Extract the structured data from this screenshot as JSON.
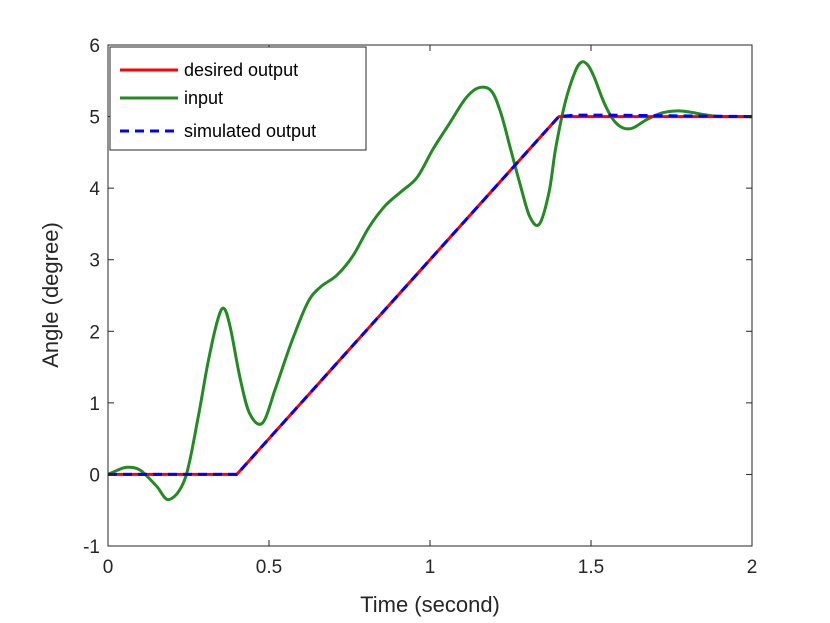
{
  "chart_data": {
    "type": "line",
    "title": "",
    "xlabel": "Time (second)",
    "ylabel": "Angle (degree)",
    "xlim": [
      0,
      2
    ],
    "ylim": [
      -1,
      6
    ],
    "xticks": [
      0,
      0.5,
      1,
      1.5,
      2
    ],
    "xtick_labels": [
      "0",
      "0.5",
      "1",
      "1.5",
      "2"
    ],
    "yticks": [
      -1,
      0,
      1,
      2,
      3,
      4,
      5,
      6
    ],
    "ytick_labels": [
      "-1",
      "0",
      "1",
      "2",
      "3",
      "4",
      "5",
      "6"
    ],
    "grid": false,
    "legend_position": "top-left",
    "series": [
      {
        "name": "desired output",
        "color": "#ff0000",
        "style": "solid",
        "x": [
          0,
          0.4,
          1.4,
          2
        ],
        "y": [
          0,
          0,
          5,
          5
        ]
      },
      {
        "name": "input",
        "color": "#228b22",
        "style": "solid",
        "x": [
          0,
          0.03,
          0.06,
          0.1,
          0.15,
          0.19,
          0.24,
          0.28,
          0.31,
          0.34,
          0.36,
          0.38,
          0.41,
          0.44,
          0.48,
          0.52,
          0.57,
          0.62,
          0.66,
          0.71,
          0.76,
          0.81,
          0.86,
          0.91,
          0.96,
          1.01,
          1.06,
          1.11,
          1.15,
          1.19,
          1.22,
          1.25,
          1.28,
          1.31,
          1.34,
          1.37,
          1.39,
          1.42,
          1.45,
          1.47,
          1.49,
          1.51,
          1.54,
          1.57,
          1.6,
          1.63,
          1.67,
          1.72,
          1.77,
          1.81,
          1.86,
          1.9,
          1.95,
          2
        ],
        "y": [
          0,
          0.06,
          0.1,
          0.06,
          -0.16,
          -0.35,
          -0.05,
          0.8,
          1.55,
          2.15,
          2.32,
          2.05,
          1.35,
          0.85,
          0.72,
          1.2,
          1.85,
          2.4,
          2.62,
          2.78,
          3.05,
          3.45,
          3.75,
          3.95,
          4.15,
          4.55,
          4.9,
          5.25,
          5.4,
          5.36,
          5.05,
          4.55,
          4.05,
          3.6,
          3.5,
          3.95,
          4.55,
          5.2,
          5.62,
          5.76,
          5.72,
          5.55,
          5.2,
          4.95,
          4.84,
          4.84,
          4.95,
          5.05,
          5.08,
          5.06,
          5.02,
          5,
          5,
          5
        ]
      },
      {
        "name": "simulated output",
        "color": "#0000ff",
        "style": "dashed",
        "x": [
          0,
          0.4,
          1.4,
          1.45,
          1.55,
          2
        ],
        "y": [
          0,
          0,
          5,
          5.02,
          5.02,
          5
        ]
      }
    ]
  }
}
